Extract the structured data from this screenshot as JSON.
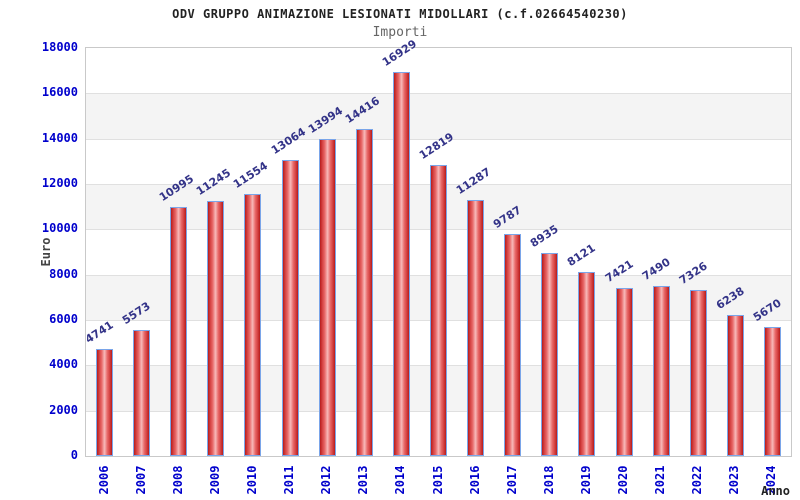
{
  "header": {
    "title": "ODV GRUPPO ANIMAZIONE LESIONATI MIDOLLARI (c.f.02664540230)",
    "subtitle": "Importi"
  },
  "chart_data": {
    "type": "bar",
    "title": "ODV GRUPPO ANIMAZIONE LESIONATI MIDOLLARI (c.f.02664540230)",
    "subtitle": "Importi",
    "xlabel": "Anno",
    "ylabel": "Euro",
    "categories": [
      "2006",
      "2007",
      "2008",
      "2009",
      "2010",
      "2011",
      "2012",
      "2013",
      "2014",
      "2015",
      "2016",
      "2017",
      "2018",
      "2019",
      "2020",
      "2021",
      "2022",
      "2023",
      "2024"
    ],
    "values": [
      4741,
      5573,
      10995,
      11245,
      11554,
      13064,
      13994,
      14416,
      16929,
      12819,
      11287,
      9787,
      8935,
      8121,
      7421,
      7490,
      7326,
      6238,
      5670
    ],
    "ylim": [
      0,
      18000
    ],
    "yticks": [
      0,
      2000,
      4000,
      6000,
      8000,
      10000,
      12000,
      14000,
      16000,
      18000
    ],
    "grid": true,
    "legend": "none",
    "layout_hints": {
      "alternating_bands": true,
      "bar_value_labels_rotated": true,
      "x_labels_rotated_90": true
    },
    "colors": {
      "bar_fill_dark": "#b71c1c",
      "bar_fill_light": "#f7baba",
      "bar_border": "#7aa5e9",
      "axis_tick_label": "#0000cc",
      "value_label": "#333388",
      "title": "#222222",
      "subtitle": "#666666",
      "axis_title": "#444444",
      "band": "#f4f4f4",
      "grid_line": "#e0e0e0",
      "plot_border": "#c9c9c9",
      "background": "#ffffff"
    }
  }
}
